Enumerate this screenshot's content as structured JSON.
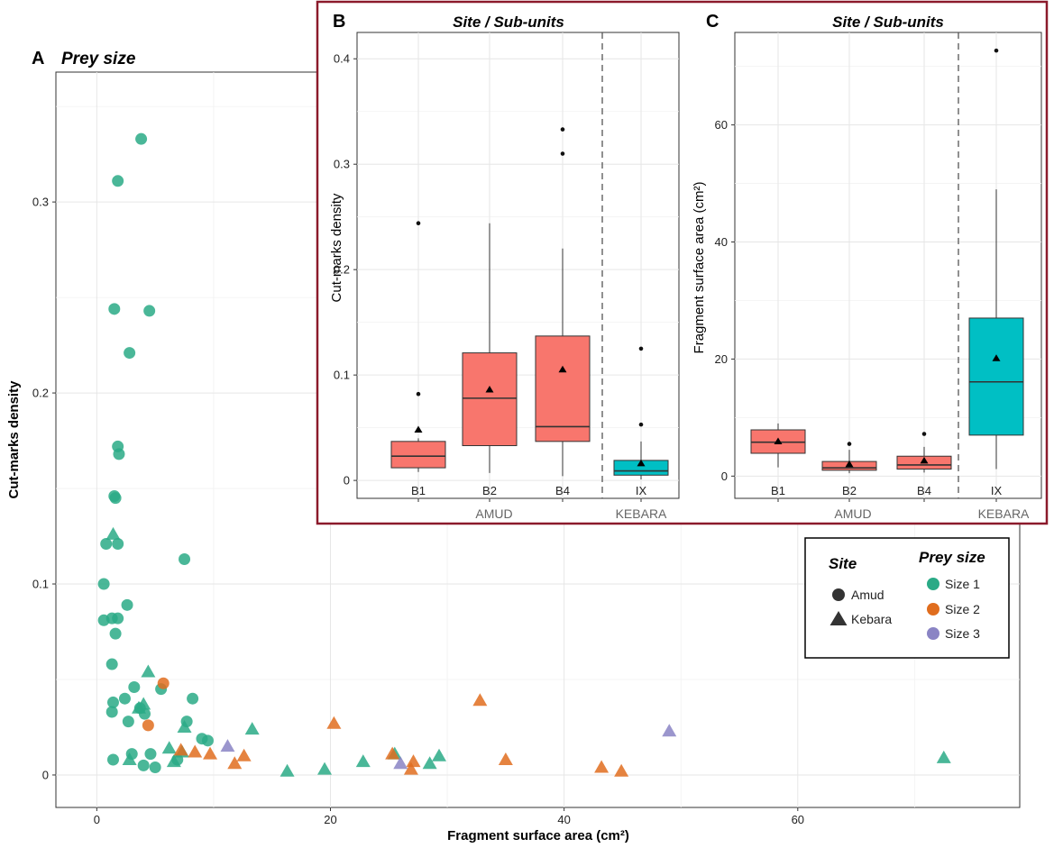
{
  "colors": {
    "size1": "#2aaa86",
    "size2": "#e06d1e",
    "size3": "#8a84c4",
    "amud_box": "#f8766d",
    "kebara_box": "#00bfc4",
    "inset_border": "#8b1a2b"
  },
  "chart_data": [
    {
      "type": "scatter",
      "panel_letter": "A",
      "title": "Prey size",
      "xlabel": "Fragment surface area (cm²)",
      "ylabel": "Cut-marks density",
      "xlim": [
        -3.5,
        79
      ],
      "ylim": [
        -0.017,
        0.368
      ],
      "xticks": [
        0,
        20,
        40,
        60
      ],
      "yticks": [
        0,
        0.1,
        0.2,
        0.3
      ],
      "ytick_labels": [
        "0",
        "0.1",
        "0.2",
        "0.3"
      ],
      "grid": true,
      "legend": {
        "position": "right",
        "site_title": "Site",
        "site_items": [
          "Amud",
          "Kebara"
        ],
        "prey_title": "Prey size",
        "prey_items": [
          "Size 1",
          "Size 2",
          "Size 3"
        ]
      },
      "points": [
        {
          "x": 3.8,
          "y": 0.333,
          "site": "Amud",
          "size": 1
        },
        {
          "x": 1.8,
          "y": 0.311,
          "site": "Amud",
          "size": 1
        },
        {
          "x": 1.5,
          "y": 0.244,
          "site": "Amud",
          "size": 1
        },
        {
          "x": 4.5,
          "y": 0.243,
          "site": "Amud",
          "size": 1
        },
        {
          "x": 2.8,
          "y": 0.221,
          "site": "Amud",
          "size": 1
        },
        {
          "x": 1.8,
          "y": 0.172,
          "site": "Amud",
          "size": 1
        },
        {
          "x": 1.9,
          "y": 0.168,
          "site": "Amud",
          "size": 1
        },
        {
          "x": 1.5,
          "y": 0.146,
          "site": "Amud",
          "size": 1
        },
        {
          "x": 1.6,
          "y": 0.145,
          "site": "Amud",
          "size": 1
        },
        {
          "x": 0.8,
          "y": 0.121,
          "site": "Amud",
          "size": 1
        },
        {
          "x": 1.8,
          "y": 0.121,
          "site": "Amud",
          "size": 1
        },
        {
          "x": 7.5,
          "y": 0.113,
          "site": "Amud",
          "size": 1
        },
        {
          "x": 0.6,
          "y": 0.1,
          "site": "Amud",
          "size": 1
        },
        {
          "x": 2.6,
          "y": 0.089,
          "site": "Amud",
          "size": 1
        },
        {
          "x": 0.6,
          "y": 0.081,
          "site": "Amud",
          "size": 1
        },
        {
          "x": 1.3,
          "y": 0.082,
          "site": "Amud",
          "size": 1
        },
        {
          "x": 1.8,
          "y": 0.082,
          "site": "Amud",
          "size": 1
        },
        {
          "x": 1.6,
          "y": 0.074,
          "site": "Amud",
          "size": 1
        },
        {
          "x": 1.3,
          "y": 0.058,
          "site": "Amud",
          "size": 1
        },
        {
          "x": 5.5,
          "y": 0.045,
          "site": "Amud",
          "size": 1
        },
        {
          "x": 3.2,
          "y": 0.046,
          "site": "Amud",
          "size": 1
        },
        {
          "x": 2.4,
          "y": 0.04,
          "site": "Amud",
          "size": 1
        },
        {
          "x": 8.2,
          "y": 0.04,
          "site": "Amud",
          "size": 1
        },
        {
          "x": 1.4,
          "y": 0.038,
          "site": "Amud",
          "size": 1
        },
        {
          "x": 3.7,
          "y": 0.035,
          "site": "Amud",
          "size": 1
        },
        {
          "x": 1.3,
          "y": 0.033,
          "site": "Amud",
          "size": 1
        },
        {
          "x": 4.1,
          "y": 0.032,
          "site": "Amud",
          "size": 1
        },
        {
          "x": 2.7,
          "y": 0.028,
          "site": "Amud",
          "size": 1
        },
        {
          "x": 7.7,
          "y": 0.028,
          "site": "Amud",
          "size": 1
        },
        {
          "x": 9.0,
          "y": 0.019,
          "site": "Amud",
          "size": 1
        },
        {
          "x": 9.5,
          "y": 0.018,
          "site": "Amud",
          "size": 1
        },
        {
          "x": 3.0,
          "y": 0.011,
          "site": "Amud",
          "size": 1
        },
        {
          "x": 4.6,
          "y": 0.011,
          "site": "Amud",
          "size": 1
        },
        {
          "x": 1.4,
          "y": 0.008,
          "site": "Amud",
          "size": 1
        },
        {
          "x": 6.9,
          "y": 0.008,
          "site": "Amud",
          "size": 1
        },
        {
          "x": 4.0,
          "y": 0.005,
          "site": "Amud",
          "size": 1
        },
        {
          "x": 5.0,
          "y": 0.004,
          "site": "Amud",
          "size": 1
        },
        {
          "x": 5.7,
          "y": 0.048,
          "site": "Amud",
          "size": 2
        },
        {
          "x": 4.4,
          "y": 0.026,
          "site": "Amud",
          "size": 2
        },
        {
          "x": 1.4,
          "y": 0.126,
          "site": "Kebara",
          "size": 1
        },
        {
          "x": 4.4,
          "y": 0.054,
          "site": "Kebara",
          "size": 1
        },
        {
          "x": 4.0,
          "y": 0.037,
          "site": "Kebara",
          "size": 1
        },
        {
          "x": 3.6,
          "y": 0.035,
          "site": "Kebara",
          "size": 1
        },
        {
          "x": 7.5,
          "y": 0.025,
          "site": "Kebara",
          "size": 1
        },
        {
          "x": 13.3,
          "y": 0.024,
          "site": "Kebara",
          "size": 1
        },
        {
          "x": 6.2,
          "y": 0.014,
          "site": "Kebara",
          "size": 1
        },
        {
          "x": 7.3,
          "y": 0.012,
          "site": "Kebara",
          "size": 1
        },
        {
          "x": 29.3,
          "y": 0.01,
          "site": "Kebara",
          "size": 1
        },
        {
          "x": 2.8,
          "y": 0.008,
          "site": "Kebara",
          "size": 1
        },
        {
          "x": 6.6,
          "y": 0.007,
          "site": "Kebara",
          "size": 1
        },
        {
          "x": 22.8,
          "y": 0.007,
          "site": "Kebara",
          "size": 1
        },
        {
          "x": 28.5,
          "y": 0.006,
          "site": "Kebara",
          "size": 1
        },
        {
          "x": 19.5,
          "y": 0.003,
          "site": "Kebara",
          "size": 1
        },
        {
          "x": 16.3,
          "y": 0.002,
          "site": "Kebara",
          "size": 1
        },
        {
          "x": 72.5,
          "y": 0.009,
          "site": "Kebara",
          "size": 1
        },
        {
          "x": 25.5,
          "y": 0.011,
          "site": "Kebara",
          "size": 1
        },
        {
          "x": 32.8,
          "y": 0.039,
          "site": "Kebara",
          "size": 2
        },
        {
          "x": 20.3,
          "y": 0.027,
          "site": "Kebara",
          "size": 2
        },
        {
          "x": 7.2,
          "y": 0.013,
          "site": "Kebara",
          "size": 2
        },
        {
          "x": 8.4,
          "y": 0.012,
          "site": "Kebara",
          "size": 2
        },
        {
          "x": 9.7,
          "y": 0.011,
          "site": "Kebara",
          "size": 2
        },
        {
          "x": 12.6,
          "y": 0.01,
          "site": "Kebara",
          "size": 2
        },
        {
          "x": 11.8,
          "y": 0.006,
          "site": "Kebara",
          "size": 2
        },
        {
          "x": 25.3,
          "y": 0.011,
          "site": "Kebara",
          "size": 2
        },
        {
          "x": 27.1,
          "y": 0.007,
          "site": "Kebara",
          "size": 2
        },
        {
          "x": 26.9,
          "y": 0.003,
          "site": "Kebara",
          "size": 2
        },
        {
          "x": 35.0,
          "y": 0.008,
          "site": "Kebara",
          "size": 2
        },
        {
          "x": 43.2,
          "y": 0.004,
          "site": "Kebara",
          "size": 2
        },
        {
          "x": 44.9,
          "y": 0.002,
          "site": "Kebara",
          "size": 2
        },
        {
          "x": 11.2,
          "y": 0.015,
          "site": "Kebara",
          "size": 3
        },
        {
          "x": 26.0,
          "y": 0.006,
          "site": "Kebara",
          "size": 3
        },
        {
          "x": 49.0,
          "y": 0.023,
          "site": "Kebara",
          "size": 3
        }
      ]
    },
    {
      "type": "box",
      "panel_letter": "B",
      "title": "Site / Sub-units",
      "ylabel": "Cut-marks density",
      "ylim": [
        -0.017,
        0.425
      ],
      "yticks": [
        0,
        0.1,
        0.2,
        0.3,
        0.4
      ],
      "ytick_labels": [
        "0",
        "0.1",
        "0.2",
        "0.3",
        "0.4"
      ],
      "categories": [
        "B1",
        "B2",
        "B4",
        "IX"
      ],
      "groups": [
        "AMUD",
        "KEBARA"
      ],
      "boxes": [
        {
          "category": "B1",
          "group": "AMUD",
          "min": 0.008,
          "q1": 0.012,
          "median": 0.023,
          "q3": 0.037,
          "max": 0.04,
          "mean": 0.048,
          "outliers": [
            0.082,
            0.244
          ]
        },
        {
          "category": "B2",
          "group": "AMUD",
          "min": 0.007,
          "q1": 0.033,
          "median": 0.078,
          "q3": 0.121,
          "max": 0.244,
          "mean": 0.086,
          "outliers": []
        },
        {
          "category": "B4",
          "group": "AMUD",
          "min": 0.004,
          "q1": 0.037,
          "median": 0.051,
          "q3": 0.137,
          "max": 0.22,
          "mean": 0.105,
          "outliers": [
            0.31,
            0.333
          ]
        },
        {
          "category": "IX",
          "group": "KEBARA",
          "min": 0.001,
          "q1": 0.005,
          "median": 0.009,
          "q3": 0.019,
          "max": 0.037,
          "mean": 0.016,
          "outliers": [
            0.053,
            0.125
          ]
        }
      ]
    },
    {
      "type": "box",
      "panel_letter": "C",
      "title": "Site / Sub-units",
      "ylabel": "Fragment surface area (cm²)",
      "ylim": [
        -3.8,
        75.8
      ],
      "yticks": [
        0,
        20,
        40,
        60
      ],
      "ytick_labels": [
        "0",
        "20",
        "40",
        "60"
      ],
      "categories": [
        "B1",
        "B2",
        "B4",
        "IX"
      ],
      "groups": [
        "AMUD",
        "KEBARA"
      ],
      "boxes": [
        {
          "category": "B1",
          "group": "AMUD",
          "min": 1.5,
          "q1": 3.9,
          "median": 5.8,
          "q3": 7.9,
          "max": 9.0,
          "mean": 5.9,
          "outliers": []
        },
        {
          "category": "B2",
          "group": "AMUD",
          "min": 0.5,
          "q1": 1.0,
          "median": 1.4,
          "q3": 2.5,
          "max": 4.5,
          "mean": 2.0,
          "outliers": [
            5.5
          ]
        },
        {
          "category": "B4",
          "group": "AMUD",
          "min": 0.6,
          "q1": 1.2,
          "median": 1.9,
          "q3": 3.4,
          "max": 5.0,
          "mean": 2.6,
          "outliers": [
            7.2
          ]
        },
        {
          "category": "IX",
          "group": "KEBARA",
          "min": 1.2,
          "q1": 7.0,
          "median": 16.1,
          "q3": 27.0,
          "max": 49.0,
          "mean": 20.1,
          "outliers": [
            72.7
          ]
        }
      ]
    }
  ]
}
